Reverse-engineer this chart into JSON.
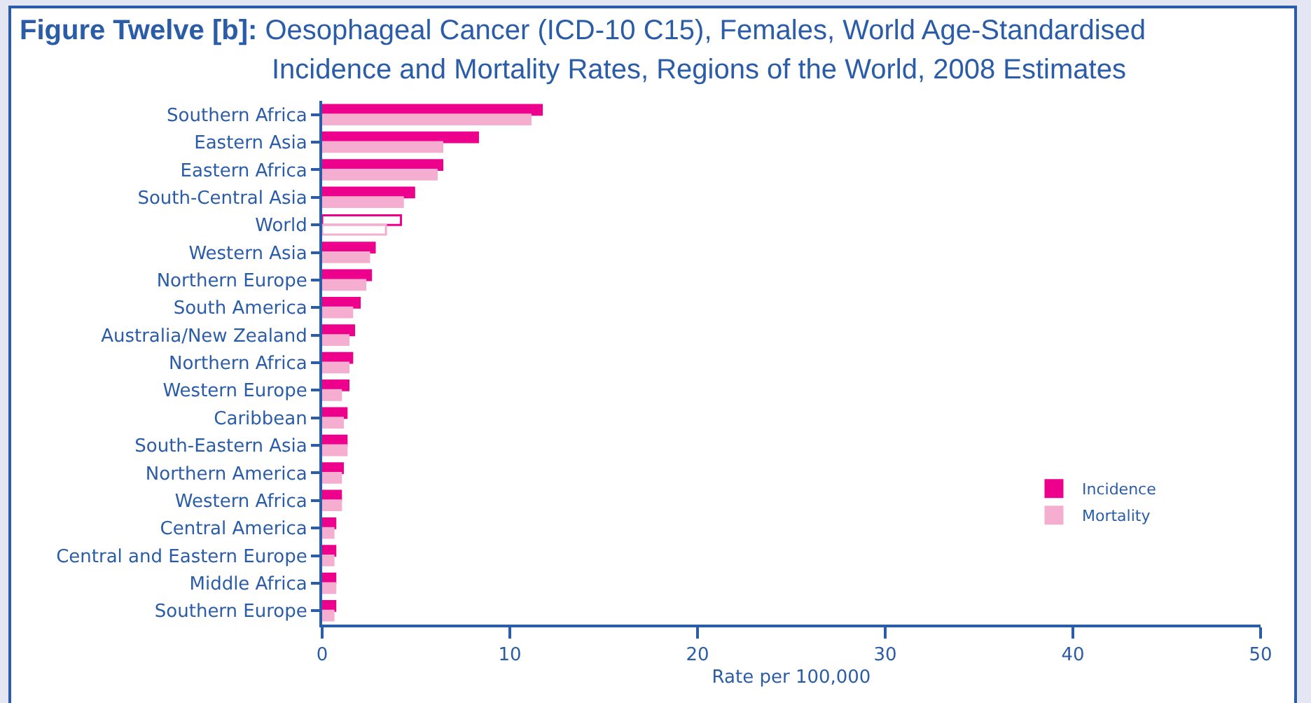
{
  "chart_data": {
    "type": "bar",
    "orientation": "horizontal",
    "title": "Figure Twelve [b]: Oesophageal Cancer (ICD-10 C15), Females, World Age-Standardised Incidence and Mortality Rates, Regions of the World, 2008 Estimates",
    "xlabel": "Rate per 100,000",
    "categories": [
      "Southern Africa",
      "Eastern Asia",
      "Eastern Africa",
      "South-Central Asia",
      "World",
      "Western Asia",
      "Northern Europe",
      "South America",
      "Australia/New Zealand",
      "Northern Africa",
      "Western Europe",
      "Caribbean",
      "South-Eastern Asia",
      "Northern America",
      "Western Africa",
      "Central America",
      "Central and Eastern Europe",
      "Middle Africa",
      "Southern Europe"
    ],
    "series": [
      {
        "name": "Incidence",
        "color": "#ec008c",
        "colors": [
          "#ec008c",
          "#ec008c",
          "#ec008c",
          "#ec008c",
          "#ffffff",
          "#ec008c",
          "#ec008c",
          "#ec008c",
          "#ec008c",
          "#ec008c",
          "#ec008c",
          "#ec008c",
          "#ec008c",
          "#ec008c",
          "#ec008c",
          "#ec008c",
          "#ec008c",
          "#ec008c",
          "#ec008c"
        ],
        "values": [
          11.7,
          8.3,
          6.4,
          4.9,
          4.2,
          2.8,
          2.6,
          2.0,
          1.7,
          1.6,
          1.4,
          1.3,
          1.3,
          1.1,
          1.0,
          0.7,
          0.7,
          0.7,
          0.7
        ]
      },
      {
        "name": "Mortality",
        "color": "#f5aecf",
        "colors": [
          "#f5aecf",
          "#f5aecf",
          "#f5aecf",
          "#f5aecf",
          "#ffffff",
          "#f5aecf",
          "#f5aecf",
          "#f5aecf",
          "#f5aecf",
          "#f5aecf",
          "#f5aecf",
          "#f5aecf",
          "#f5aecf",
          "#f5aecf",
          "#f5aecf",
          "#f5aecf",
          "#f5aecf",
          "#f5aecf",
          "#f5aecf"
        ],
        "values": [
          11.1,
          6.4,
          6.1,
          4.3,
          3.4,
          2.5,
          2.3,
          1.6,
          1.4,
          1.4,
          1.0,
          1.1,
          1.3,
          1.0,
          1.0,
          0.6,
          0.6,
          0.7,
          0.6
        ]
      }
    ],
    "xlim": [
      0,
      50
    ],
    "xticks": [
      0,
      10,
      20,
      30,
      40,
      50
    ],
    "grid": false,
    "legend": "bottom right"
  }
}
